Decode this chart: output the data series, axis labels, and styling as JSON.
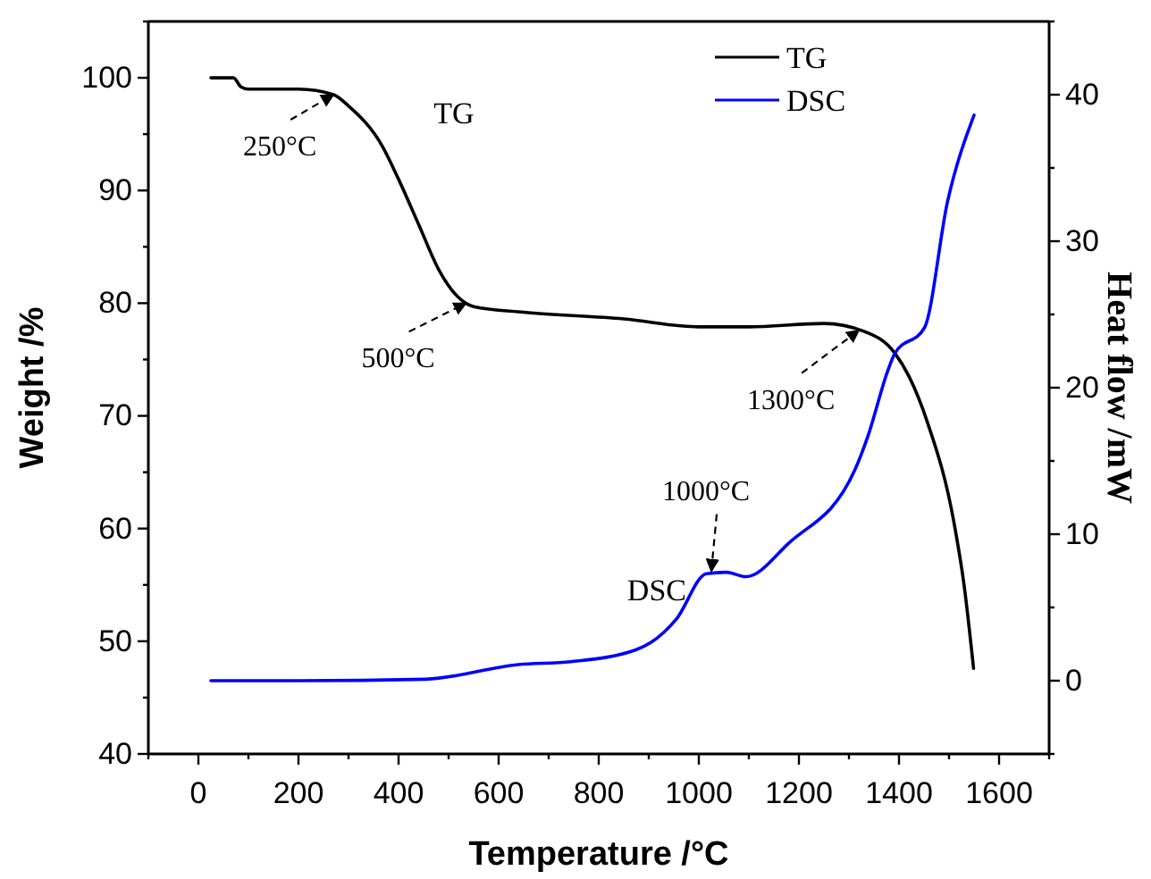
{
  "chart_data": {
    "type": "line",
    "xlabel": "Temperature /°C",
    "ylabel": "Weight /%",
    "y2label": "Heat flow /mW",
    "xlim": [
      -100,
      1700
    ],
    "xticks": [
      {
        "value": -100,
        "label": null
      },
      0,
      {
        "value": 100,
        "label": null
      },
      200,
      {
        "value": 300,
        "label": null
      },
      400,
      {
        "value": 500,
        "label": null
      },
      600,
      {
        "value": 700,
        "label": null
      },
      800,
      {
        "value": 900,
        "label": null
      },
      1000,
      {
        "value": 1100,
        "label": null
      },
      1200,
      {
        "value": 1300,
        "label": null
      },
      1400,
      {
        "value": 1500,
        "label": null
      },
      1600,
      {
        "value": 1700,
        "label": null
      }
    ],
    "ylim": [
      40,
      105
    ],
    "yticks": [
      40,
      {
        "value": 45,
        "label": null
      },
      50,
      {
        "value": 55,
        "label": null
      },
      60,
      {
        "value": 65,
        "label": null
      },
      70,
      {
        "value": 75,
        "label": null
      },
      80,
      {
        "value": 85,
        "label": null
      },
      90,
      {
        "value": 95,
        "label": null
      },
      100,
      {
        "value": 105,
        "label": null
      }
    ],
    "y2lim": [
      -5,
      45
    ],
    "y2ticks": [
      {
        "value": -5,
        "label": null
      },
      0,
      {
        "value": 5,
        "label": null
      },
      10,
      {
        "value": 15,
        "label": null
      },
      20,
      {
        "value": 25,
        "label": null
      },
      30,
      {
        "value": 35,
        "label": null
      },
      40,
      {
        "value": 45,
        "label": null
      }
    ],
    "legend": "top right",
    "grid": false,
    "series": [
      {
        "name": "TG",
        "color": "#000000",
        "x": [
          25,
          70,
          85,
          100,
          200,
          270,
          300,
          368,
          400,
          441,
          480,
          534,
          550,
          650,
          850,
          1000,
          1100,
          1250,
          1330,
          1391,
          1420,
          1457,
          1510,
          1530,
          1549
        ],
        "values": [
          100,
          100,
          99.2,
          99,
          99,
          98.5,
          97.5,
          93.9,
          91,
          86.9,
          83,
          80,
          79.7,
          79.2,
          78.6,
          77.9,
          77.9,
          78.2,
          77.5,
          75.6,
          73.5,
          69.4,
          60.5,
          55,
          47.6
        ]
      },
      {
        "name": "DSC",
        "color": "#0000ff",
        "axis": "y2",
        "x": [
          25,
          200,
          454,
          639,
          744,
          874,
          904,
          955,
          1015,
          1055,
          1094,
          1180,
          1312,
          1338,
          1378,
          1391,
          1451,
          1497,
          1550
        ],
        "values": [
          0,
          0,
          0.1,
          1.1,
          1.3,
          2.1,
          2.6,
          4.2,
          7.3,
          7.4,
          7.1,
          9.4,
          14.4,
          16.7,
          21.2,
          22.3,
          24.1,
          32.7,
          38.6
        ]
      }
    ],
    "annotations": [
      {
        "text": "250°C",
        "x": 270,
        "y": 98.5
      },
      {
        "text": "500°C",
        "x": 535,
        "y": 80
      },
      {
        "text": "1000°C",
        "x": 1025,
        "y": 56.2
      },
      {
        "text": "1300°C",
        "x": 1320,
        "y": 77.6
      }
    ]
  }
}
